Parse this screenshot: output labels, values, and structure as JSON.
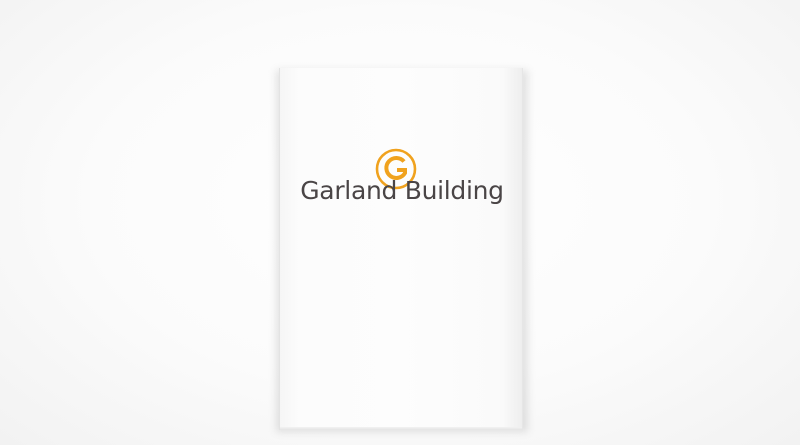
{
  "brand": {
    "name": "Garland Building",
    "mark_letter": "G",
    "mark_color": "#f0a21e",
    "text_color": "#4a4546"
  }
}
